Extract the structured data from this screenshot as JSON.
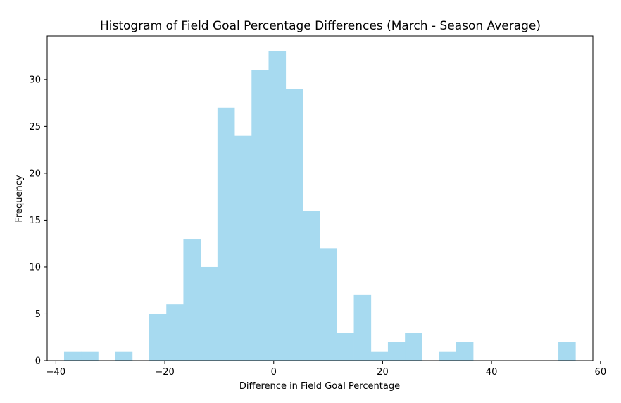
{
  "chart_data": {
    "type": "bar",
    "title": "Histogram of Field Goal Percentage Differences (March - Season Average)",
    "xlabel": "Difference in Field Goal Percentage",
    "ylabel": "Frequency",
    "bin_start": -38.5,
    "bin_width": 3.13,
    "values": [
      1,
      1,
      0,
      1,
      0,
      5,
      6,
      13,
      10,
      27,
      24,
      31,
      33,
      29,
      16,
      12,
      3,
      7,
      1,
      2,
      3,
      0,
      1,
      2,
      0,
      0,
      0,
      0,
      0,
      2
    ],
    "xlim": [
      -41.6,
      58.6
    ],
    "ylim": [
      0,
      34.65
    ],
    "xticks": [
      -40,
      -20,
      0,
      20,
      40,
      60
    ],
    "xtick_labels": [
      "−40",
      "−20",
      "0",
      "20",
      "40",
      "60"
    ],
    "yticks": [
      0,
      5,
      10,
      15,
      20,
      25,
      30
    ],
    "ytick_labels": [
      "0",
      "5",
      "10",
      "15",
      "20",
      "25",
      "30"
    ],
    "bar_color": "#a7daf0",
    "grid": false,
    "legend": "none"
  }
}
